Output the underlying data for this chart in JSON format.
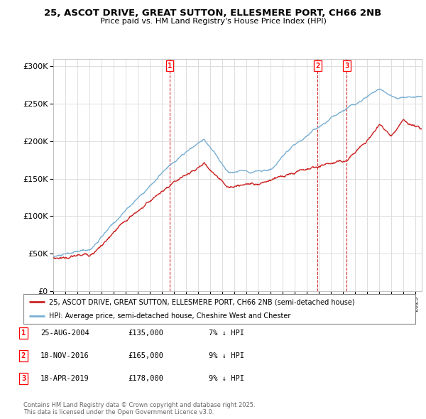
{
  "title": "25, ASCOT DRIVE, GREAT SUTTON, ELLESMERE PORT, CH66 2NB",
  "subtitle": "Price paid vs. HM Land Registry's House Price Index (HPI)",
  "legend_line1": "25, ASCOT DRIVE, GREAT SUTTON, ELLESMERE PORT, CH66 2NB (semi-detached house)",
  "legend_line2": "HPI: Average price, semi-detached house, Cheshire West and Chester",
  "footnote": "Contains HM Land Registry data © Crown copyright and database right 2025.\nThis data is licensed under the Open Government Licence v3.0.",
  "transactions": [
    {
      "num": 1,
      "date": "25-AUG-2004",
      "price": "£135,000",
      "pct": "7% ↓ HPI",
      "year": 2004.65
    },
    {
      "num": 2,
      "date": "18-NOV-2016",
      "price": "£165,000",
      "pct": "9% ↓ HPI",
      "year": 2016.88
    },
    {
      "num": 3,
      "date": "18-APR-2019",
      "price": "£178,000",
      "pct": "9% ↓ HPI",
      "year": 2019.29
    }
  ],
  "ylim": [
    0,
    310000
  ],
  "xlim_start": 1995,
  "xlim_end": 2025.5,
  "background_color": "#ffffff",
  "plot_bg_color": "#ffffff",
  "grid_color": "#dddddd",
  "hpi_color": "#7ab0d4",
  "price_color": "#cc2222",
  "transaction_line_color": "#cc0000"
}
